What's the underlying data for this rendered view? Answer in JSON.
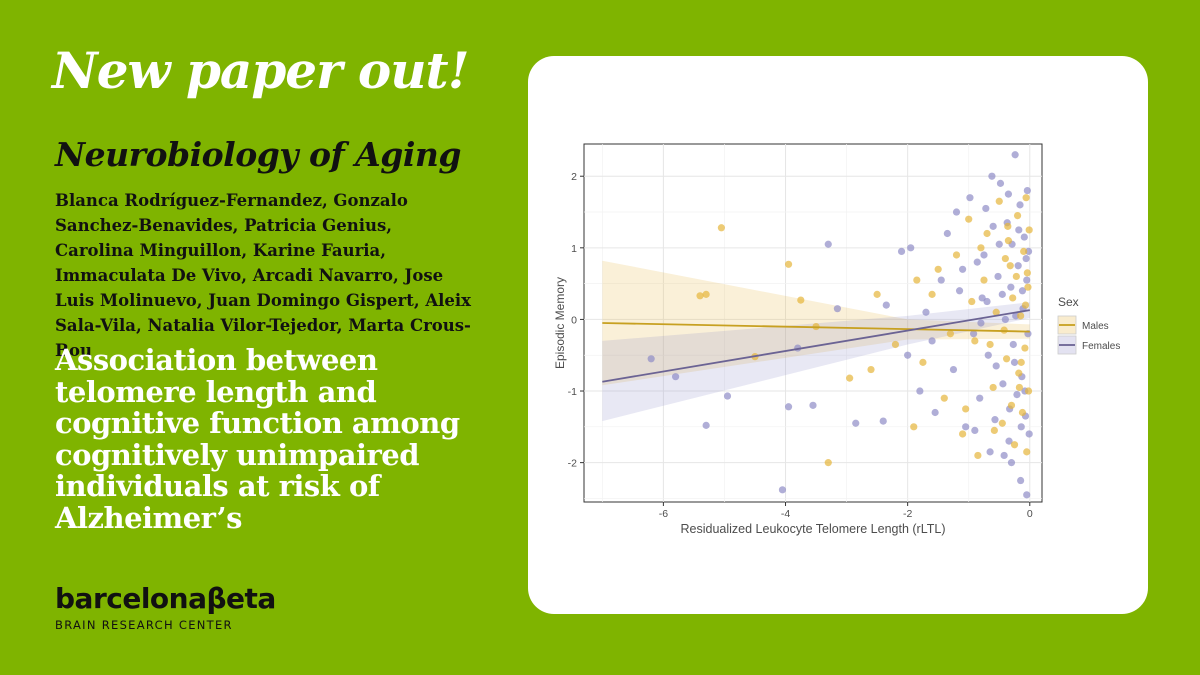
{
  "headline": "New paper out!",
  "journal": "Neurobiology of Aging",
  "authors": "Blanca Rodríguez-Fernandez, Gonzalo Sanchez-Benavides, Patricia Genius, Carolina Minguillon, Karine Fauria, Immaculata De Vivo, Arcadi Navarro, Jose Luis Molinuevo, Juan Domingo Gispert, Aleix Sala-Vila, Natalia Vilor-Tejedor, Marta Crous-Bou",
  "paper_title": "Association between telomere length and cognitive function among cognitively unimpaired individuals at risk of Alzheimer’s",
  "logo": {
    "name": "barcelonaβeta",
    "subtitle": "BRAIN RESEARCH CENTER"
  },
  "colors": {
    "background": "#7fb400",
    "males": "#e6b53a",
    "females": "#8e8cc6",
    "males_line": "#c7a020",
    "females_line": "#6b6394"
  },
  "chart_data": {
    "type": "scatter",
    "xlabel": "Residualized Leukocyte Telomere Length (rLTL)",
    "ylabel": "Episodic Memory",
    "xlim": [
      -7.3,
      0.2
    ],
    "ylim": [
      -2.55,
      2.45
    ],
    "xticks": [
      -6,
      -4,
      -2,
      0
    ],
    "xtick_labels": [
      "-6",
      "-4",
      "-2",
      "0"
    ],
    "yticks": [
      -2,
      -1,
      0,
      1,
      2
    ],
    "ytick_labels": [
      "-2",
      "-1",
      "0",
      "1",
      "2"
    ],
    "legend": {
      "title": "Sex",
      "entries": [
        "Males",
        "Females"
      ],
      "placement": "right"
    },
    "series": [
      {
        "name": "Males",
        "fit": {
          "x": [
            -7,
            0
          ],
          "y": [
            -0.05,
            -0.17
          ]
        },
        "ci_upper": [
          [
            -7,
            0.82
          ],
          [
            -2,
            0.0
          ],
          [
            0,
            -0.07
          ]
        ],
        "ci_lower": [
          [
            -7,
            -0.92
          ],
          [
            -2,
            -0.28
          ],
          [
            0,
            -0.27
          ]
        ],
        "points": [
          [
            -5.05,
            1.28
          ],
          [
            -3.95,
            0.77
          ],
          [
            -5.3,
            0.35
          ],
          [
            -5.4,
            0.33
          ],
          [
            -3.75,
            0.27
          ],
          [
            -3.3,
            -2.0
          ],
          [
            -2.95,
            -0.82
          ],
          [
            -4.5,
            -0.52
          ],
          [
            -3.5,
            -0.1
          ],
          [
            -2.5,
            0.35
          ],
          [
            -2.2,
            -0.35
          ],
          [
            -1.9,
            -1.5
          ],
          [
            -1.75,
            -0.6
          ],
          [
            -1.6,
            0.35
          ],
          [
            -1.4,
            -1.1
          ],
          [
            -1.2,
            0.9
          ],
          [
            -1.1,
            -1.6
          ],
          [
            -1.0,
            1.4
          ],
          [
            -0.9,
            -0.3
          ],
          [
            -0.85,
            -1.9
          ],
          [
            -0.75,
            0.55
          ],
          [
            -0.7,
            1.2
          ],
          [
            -0.6,
            -0.95
          ],
          [
            -0.55,
            0.1
          ],
          [
            -0.5,
            1.65
          ],
          [
            -0.45,
            -1.45
          ],
          [
            -0.4,
            0.85
          ],
          [
            -0.38,
            -0.55
          ],
          [
            -0.35,
            1.1
          ],
          [
            -0.3,
            -1.2
          ],
          [
            -0.28,
            0.3
          ],
          [
            -0.25,
            -1.75
          ],
          [
            -0.22,
            0.6
          ],
          [
            -0.2,
            1.45
          ],
          [
            -0.18,
            -0.75
          ],
          [
            -0.15,
            0.05
          ],
          [
            -0.12,
            -1.3
          ],
          [
            -0.1,
            0.95
          ],
          [
            -0.08,
            -0.4
          ],
          [
            -0.06,
            1.7
          ],
          [
            -0.05,
            -1.85
          ],
          [
            -0.03,
            0.45
          ],
          [
            -0.02,
            -1.0
          ],
          [
            -0.01,
            1.25
          ],
          [
            -1.5,
            0.7
          ],
          [
            -1.3,
            -0.2
          ],
          [
            -0.95,
            0.25
          ],
          [
            -0.65,
            -0.35
          ],
          [
            -0.42,
            -0.15
          ],
          [
            -0.32,
            0.75
          ],
          [
            -0.17,
            -0.95
          ],
          [
            -0.07,
            0.2
          ],
          [
            -2.6,
            -0.7
          ],
          [
            -1.85,
            0.55
          ],
          [
            -1.05,
            -1.25
          ],
          [
            -0.8,
            1.0
          ],
          [
            -0.58,
            -1.55
          ],
          [
            -0.36,
            1.3
          ],
          [
            -0.14,
            -0.6
          ],
          [
            -0.04,
            0.65
          ]
        ]
      },
      {
        "name": "Females",
        "fit": {
          "x": [
            -7,
            0
          ],
          "y": [
            -0.87,
            0.13
          ]
        },
        "ci_upper": [
          [
            -7,
            -0.3
          ],
          [
            -2,
            0.05
          ],
          [
            0,
            0.24
          ]
        ],
        "ci_lower": [
          [
            -7,
            -1.42
          ],
          [
            -2,
            -0.35
          ],
          [
            0,
            0.02
          ]
        ],
        "points": [
          [
            -6.2,
            -0.55
          ],
          [
            -5.8,
            -0.8
          ],
          [
            -5.3,
            -1.48
          ],
          [
            -4.95,
            -1.07
          ],
          [
            -4.05,
            -2.38
          ],
          [
            -3.95,
            -1.22
          ],
          [
            -3.8,
            -0.4
          ],
          [
            -3.55,
            -1.2
          ],
          [
            -3.3,
            1.05
          ],
          [
            -3.15,
            0.15
          ],
          [
            -2.85,
            -1.45
          ],
          [
            -2.4,
            -1.42
          ],
          [
            -2.35,
            0.2
          ],
          [
            -2.1,
            0.95
          ],
          [
            -2.0,
            -0.5
          ],
          [
            -1.95,
            1.0
          ],
          [
            -1.8,
            -1.0
          ],
          [
            -1.7,
            0.1
          ],
          [
            -1.55,
            -1.3
          ],
          [
            -1.45,
            0.55
          ],
          [
            -1.35,
            1.2
          ],
          [
            -1.25,
            -0.7
          ],
          [
            -1.15,
            0.4
          ],
          [
            -1.05,
            -1.5
          ],
          [
            -0.98,
            1.7
          ],
          [
            -0.92,
            -0.2
          ],
          [
            -0.86,
            0.8
          ],
          [
            -0.82,
            -1.1
          ],
          [
            -0.78,
            0.3
          ],
          [
            -0.72,
            1.55
          ],
          [
            -0.68,
            -0.5
          ],
          [
            -0.62,
            2.0
          ],
          [
            -0.57,
            -1.4
          ],
          [
            -0.52,
            0.6
          ],
          [
            -0.48,
            1.9
          ],
          [
            -0.44,
            -0.9
          ],
          [
            -0.4,
            0.0
          ],
          [
            -0.37,
            1.35
          ],
          [
            -0.34,
            -1.7
          ],
          [
            -0.31,
            0.45
          ],
          [
            -0.29,
            1.05
          ],
          [
            -0.27,
            -0.35
          ],
          [
            -0.24,
            2.3
          ],
          [
            -0.21,
            -1.05
          ],
          [
            -0.19,
            0.75
          ],
          [
            -0.16,
            1.6
          ],
          [
            -0.13,
            -0.8
          ],
          [
            -0.11,
            0.15
          ],
          [
            -0.09,
            1.15
          ],
          [
            -0.07,
            -1.35
          ],
          [
            -0.05,
            0.55
          ],
          [
            -0.04,
            1.8
          ],
          [
            -0.03,
            -0.2
          ],
          [
            -0.02,
            0.95
          ],
          [
            -0.01,
            -1.6
          ],
          [
            -0.15,
            -2.25
          ],
          [
            -0.05,
            -2.45
          ],
          [
            -0.3,
            -2.0
          ],
          [
            -0.6,
            1.3
          ],
          [
            -0.8,
            -0.05
          ],
          [
            -1.1,
            0.7
          ],
          [
            -0.45,
            0.35
          ],
          [
            -0.25,
            -0.6
          ],
          [
            -0.12,
            0.4
          ],
          [
            -0.35,
            1.75
          ],
          [
            -0.55,
            -0.65
          ],
          [
            -0.7,
            0.25
          ],
          [
            -0.9,
            -1.55
          ],
          [
            -0.18,
            1.25
          ],
          [
            -0.08,
            -1.0
          ],
          [
            -0.33,
            -1.25
          ],
          [
            -0.5,
            1.05
          ],
          [
            -0.65,
            -1.85
          ],
          [
            -0.23,
            0.05
          ],
          [
            -0.14,
            -1.5
          ],
          [
            -1.6,
            -0.3
          ],
          [
            -1.2,
            1.5
          ],
          [
            -0.75,
            0.9
          ],
          [
            -0.42,
            -1.9
          ],
          [
            -0.06,
            0.85
          ]
        ]
      }
    ]
  }
}
